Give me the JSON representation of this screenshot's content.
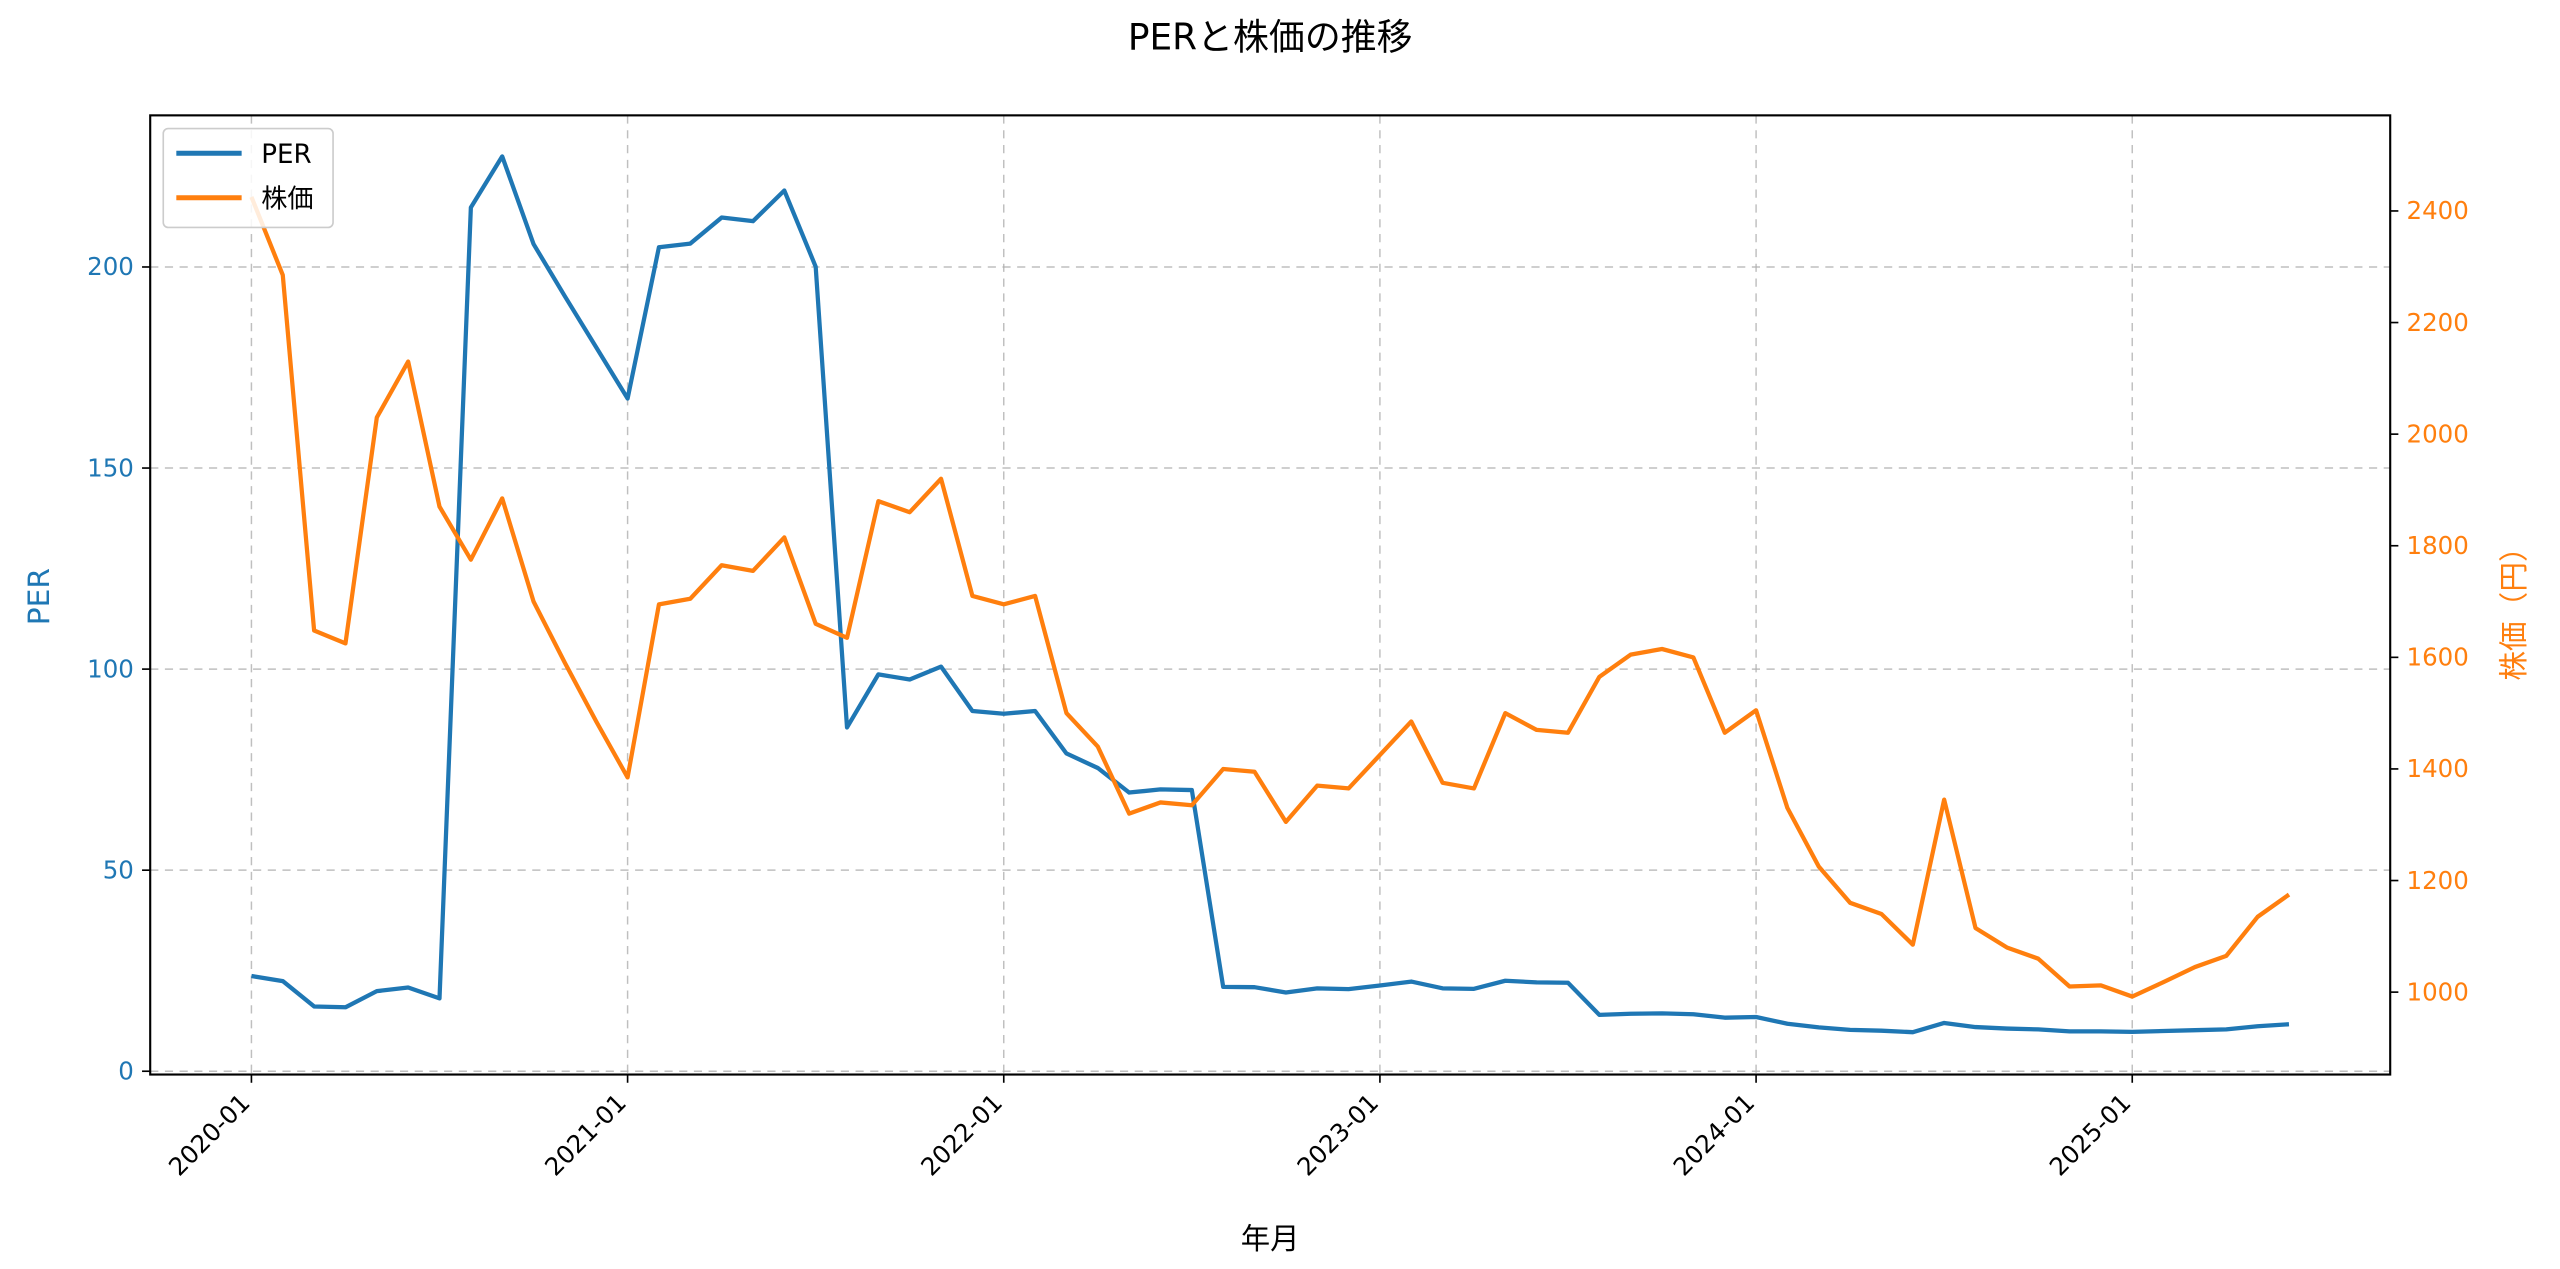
{
  "chart_data": {
    "type": "line",
    "title": "PERと株価の推移",
    "xlabel": "年月",
    "ylabel": "PER",
    "ylabel_right": "株価（円）",
    "ylim": [
      -1,
      238
    ],
    "ylim_right": [
      850,
      2560
    ],
    "yticks": [
      0,
      50,
      100,
      150,
      200
    ],
    "yticks_right": [
      1000,
      1200,
      1400,
      1600,
      1800,
      2000,
      2200,
      2400
    ],
    "xticks": [
      "2020-01",
      "2021-01",
      "2022-01",
      "2023-01",
      "2024-01",
      "2025-01"
    ],
    "grid": true,
    "legend_position": "upper left",
    "colors": {
      "PER": "#1f77b4",
      "株価": "#ff7f0e"
    },
    "x": [
      "2020-01",
      "2020-02",
      "2020-03",
      "2020-04",
      "2020-05",
      "2020-06",
      "2020-07",
      "2020-08",
      "2020-09",
      "2020-10",
      "2020-11",
      "2020-12",
      "2021-01",
      "2021-02",
      "2021-03",
      "2021-04",
      "2021-05",
      "2021-06",
      "2021-07",
      "2021-08",
      "2021-09",
      "2021-10",
      "2021-11",
      "2021-12",
      "2022-01",
      "2022-02",
      "2022-03",
      "2022-04",
      "2022-05",
      "2022-06",
      "2022-07",
      "2022-08",
      "2022-09",
      "2022-10",
      "2022-11",
      "2022-12",
      "2023-01",
      "2023-02",
      "2023-03",
      "2023-04",
      "2023-05",
      "2023-06",
      "2023-07",
      "2023-08",
      "2023-09",
      "2023-10",
      "2023-11",
      "2023-12",
      "2024-01",
      "2024-02",
      "2024-03",
      "2024-04",
      "2024-05",
      "2024-06",
      "2024-07",
      "2024-08",
      "2024-09",
      "2024-10",
      "2024-11",
      "2024-12",
      "2025-01",
      "2025-02",
      "2025-03",
      "2025-04",
      "2025-05",
      "2025-06"
    ],
    "series": [
      {
        "name": "PER",
        "axis": "left",
        "values": [
          23.7,
          22.4,
          16.1,
          15.9,
          19.9,
          20.8,
          18.1,
          214.8,
          227.5,
          205.7,
          192.7,
          180.0,
          167.3,
          204.9,
          205.8,
          212.3,
          211.4,
          219.0,
          200.1,
          85.5,
          98.7,
          97.4,
          100.6,
          89.6,
          88.9,
          89.6,
          79.0,
          75.4,
          69.3,
          70.1,
          69.9,
          21.0,
          20.9,
          19.6,
          20.6,
          20.4,
          21.3,
          22.3,
          20.6,
          20.5,
          22.5,
          22.1,
          22.0,
          14.0,
          14.3,
          14.4,
          14.2,
          13.3,
          13.5,
          11.8,
          10.9,
          10.3,
          10.1,
          9.7,
          12.0,
          11.0,
          10.6,
          10.4,
          9.9,
          9.9,
          9.8,
          10.0,
          10.2,
          10.4,
          11.2,
          11.7
        ]
      },
      {
        "name": "株価",
        "axis": "right",
        "values": [
          2425,
          2285,
          1648,
          1625,
          2030,
          2130,
          1870,
          1775,
          1885,
          1700,
          1590,
          1485,
          1385,
          1695,
          1705,
          1765,
          1755,
          1815,
          1660,
          1635,
          1880,
          1860,
          1920,
          1710,
          1695,
          1710,
          1500,
          1440,
          1320,
          1340,
          1335,
          1400,
          1395,
          1305,
          1370,
          1365,
          1425,
          1485,
          1375,
          1365,
          1500,
          1470,
          1465,
          1565,
          1605,
          1615,
          1600,
          1465,
          1505,
          1330,
          1225,
          1160,
          1140,
          1085,
          1345,
          1115,
          1080,
          1060,
          1010,
          1012,
          992,
          1018,
          1045,
          1065,
          1135,
          1175
        ]
      }
    ]
  }
}
